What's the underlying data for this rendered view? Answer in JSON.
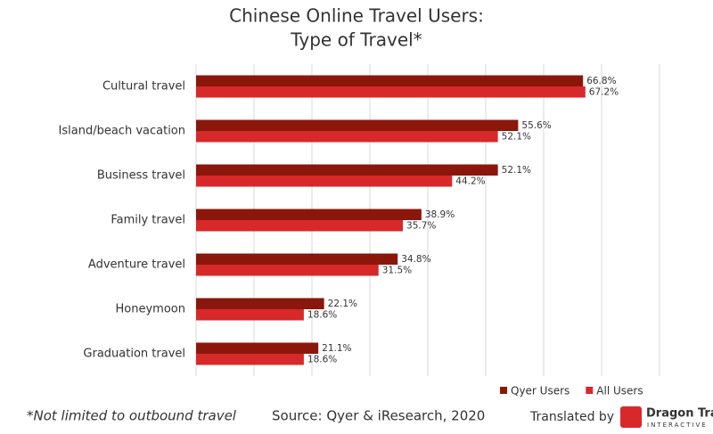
{
  "chart_data": {
    "type": "hbar",
    "title": [
      "Chinese Online Travel Users:",
      "Type of Travel*"
    ],
    "categories": [
      "Cultural travel",
      "Island/beach vacation",
      "Business travel",
      "Family travel",
      "Adventure travel",
      "Honeymoon",
      "Graduation travel"
    ],
    "series": [
      {
        "name": "Qyer Users",
        "color": "#8b170c",
        "values": [
          66.8,
          55.6,
          52.1,
          38.9,
          34.8,
          22.1,
          21.1
        ],
        "value_labels": [
          "66.8%",
          "55.6%",
          "52.1%",
          "38.9%",
          "34.8%",
          "22.1%",
          "21.1%"
        ]
      },
      {
        "name": "All Users",
        "color": "#d7292a",
        "values": [
          67.2,
          52.1,
          44.2,
          35.7,
          31.5,
          18.6,
          18.6
        ],
        "value_labels": [
          "67.2%",
          "52.1%",
          "44.2%",
          "35.7%",
          "31.5%",
          "18.6%",
          "18.6%"
        ]
      }
    ],
    "xlim": [
      0,
      80
    ],
    "xticks": [
      0,
      10,
      20,
      30,
      40,
      50,
      60,
      70,
      80
    ],
    "grid": true,
    "legend": "bottom-right",
    "footnote": "*Not limited to outbound travel",
    "source": "Source: Qyer & iResearch, 2020",
    "credit": {
      "prefix": "Translated by",
      "brand": "Dragon Trail",
      "tagline": "INTERACTIVE"
    }
  }
}
